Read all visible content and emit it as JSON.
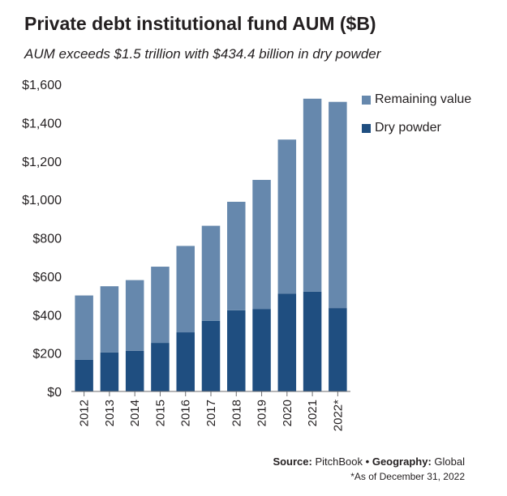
{
  "header": {
    "title": "Private debt institutional fund AUM ($B)",
    "subtitle": "AUM exceeds $1.5 trillion with $434.4 billion in dry powder"
  },
  "colors": {
    "remaining_value": "#6688ad",
    "dry_powder": "#1f4e80",
    "axis": "#6d6e71"
  },
  "legend": {
    "items": [
      {
        "label": "Remaining value",
        "color": "#6688ad"
      },
      {
        "label": "Dry powder",
        "color": "#1f4e80"
      }
    ]
  },
  "chart_data": {
    "type": "bar",
    "stacked": true,
    "title": "Private debt institutional fund AUM ($B)",
    "subtitle": "AUM exceeds $1.5 trillion with $434.4 billion in dry powder",
    "categories": [
      "2012",
      "2013",
      "2014",
      "2015",
      "2016",
      "2017",
      "2018",
      "2019",
      "2020",
      "2021",
      "2022*"
    ],
    "series": [
      {
        "name": "Dry powder",
        "values": [
          165,
          203,
          212,
          253,
          308,
          368,
          423,
          430,
          510,
          520,
          434.4
        ]
      },
      {
        "name": "Remaining value",
        "values": [
          335,
          345,
          368,
          397,
          450,
          495,
          565,
          672,
          802,
          1005,
          1074
        ]
      }
    ],
    "yticks": [
      "$0",
      "$200",
      "$400",
      "$600",
      "$800",
      "$1,000",
      "$1,200",
      "$1,400",
      "$1,600"
    ],
    "ylim": [
      0,
      1600
    ],
    "grid": false,
    "legend_position": "top-right"
  },
  "footer": {
    "source_label": "Source:",
    "source_value": "PitchBook",
    "separator": "•",
    "geography_label": "Geography:",
    "geography_value": "Global",
    "footnote": "*As of December 31, 2022"
  }
}
